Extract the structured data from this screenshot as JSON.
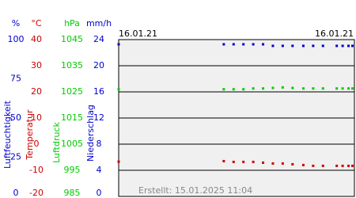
{
  "chart_data": {
    "type": "scatter",
    "date_left": "16.01.21",
    "date_right": "16.01.21",
    "created": "Erstellt: 15.01.2025 11:04",
    "xlim": [
      0,
      24
    ],
    "axes": [
      {
        "unit": "%",
        "title": "Luftfeuchtigkeit",
        "color": "#0000cc",
        "lim": [
          0,
          100
        ],
        "ticks": [
          100,
          75,
          50,
          25,
          0
        ]
      },
      {
        "unit": "°C",
        "title": "Temperatur",
        "color": "#cc0000",
        "lim": [
          -20,
          40
        ],
        "ticks": [
          40,
          30,
          20,
          10,
          0,
          -10,
          -20
        ]
      },
      {
        "unit": "hPa",
        "title": "Luftdruck",
        "color": "#00cc00",
        "lim": [
          985,
          1045
        ],
        "ticks": [
          1045,
          1035,
          1025,
          1015,
          1005,
          995,
          985
        ]
      },
      {
        "unit": "mm/h",
        "title": "Niederschlag",
        "color": "#0000cc",
        "lim": [
          0,
          24
        ],
        "ticks": [
          24,
          20,
          16,
          12,
          8,
          4,
          0
        ]
      }
    ],
    "grid_axis": 3,
    "x": [
      0,
      10.7,
      11.7,
      12.7,
      13.7,
      14.7,
      15.7,
      16.7,
      17.7,
      18.8,
      19.8,
      20.8,
      22.2,
      22.8,
      23.4,
      23.8
    ],
    "series": [
      {
        "name": "Luftfeuchtigkeit",
        "color": "#0000cc",
        "axis": 0,
        "values": [
          97,
          97,
          97,
          97,
          97,
          97,
          96,
          96,
          96,
          96,
          96,
          96,
          96,
          96,
          96,
          96
        ]
      },
      {
        "name": "Luftdruck",
        "color": "#00cc00",
        "axis": 2,
        "values": [
          1026,
          1026,
          1026,
          1026,
          1026.3,
          1026.3,
          1026.5,
          1026.7,
          1026.5,
          1026.3,
          1026.3,
          1026.3,
          1026.3,
          1026.3,
          1026.3,
          1026.3
        ]
      },
      {
        "name": "Temperatur",
        "color": "#cc0000",
        "axis": 1,
        "values": [
          -6.7,
          -6.5,
          -6.8,
          -6.8,
          -6.8,
          -7.1,
          -7.4,
          -7.4,
          -7.7,
          -8,
          -8.3,
          -8.3,
          -8.3,
          -8.3,
          -8.3,
          -8.3
        ]
      }
    ]
  }
}
